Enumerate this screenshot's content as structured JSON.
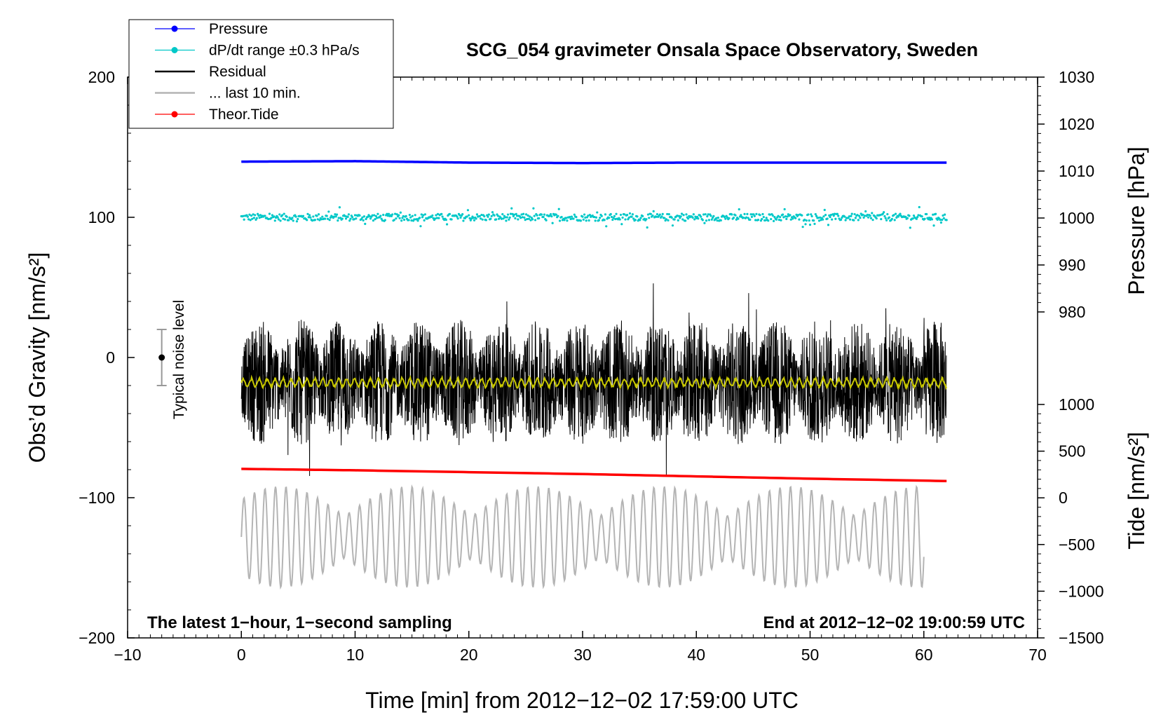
{
  "chart_data": {
    "type": "line",
    "title": "SCG_054 gravimeter Onsala Space Observatory, Sweden",
    "xlabel": "Time [min] from 2012−12−02 17:59:00 UTC",
    "ylabel_left": "Obs’d Gravity [nm/s²]",
    "ylabel_right_pressure": "Pressure [hPa]",
    "ylabel_right_tide": "Tide [nm/s²]",
    "xlim": [
      -10,
      70
    ],
    "ylim_left": [
      -200,
      200
    ],
    "x_ticks": [
      "−10",
      "0",
      "10",
      "20",
      "30",
      "40",
      "50",
      "60",
      "70"
    ],
    "y_ticks_left": [
      "200",
      "100",
      "0",
      "−100",
      "−200"
    ],
    "pressure_ticks": [
      "1030",
      "1020",
      "1010",
      "1000",
      "990",
      "980"
    ],
    "pressure_range": [
      980,
      1030
    ],
    "tide_ticks": [
      "1000",
      "500",
      "0",
      "−500",
      "−1000",
      "−1500"
    ],
    "tide_range": [
      -1500,
      1000
    ],
    "grid": false,
    "legend_position": "top-left",
    "noise_label": "Typical noise level",
    "noise_bar": {
      "x": -7,
      "center": 0,
      "low": -20,
      "high": 20
    },
    "bottom_left_note": "The latest 1−hour, 1−second sampling",
    "bottom_right_note": "End at 2012−12−02 19:00:59 UTC",
    "legend": [
      {
        "label": "Pressure",
        "color": "#0000ff",
        "marker": true
      },
      {
        "label": "dP/dt range ±0.3 hPa/s",
        "color": "#00c8c8",
        "marker": true
      },
      {
        "label": "Residual",
        "color": "#000000",
        "marker": false
      },
      {
        "label": "... last 10 min.",
        "color": "#b4b4b4",
        "marker": false
      },
      {
        "label": "Theor.Tide",
        "color": "#ff0000",
        "marker": true
      }
    ],
    "series": [
      {
        "name": "Pressure",
        "color": "#0000ff",
        "axis": "pressure",
        "x": [
          0,
          10,
          20,
          30,
          40,
          50,
          62
        ],
        "y": [
          1012.0,
          1012.1,
          1011.8,
          1011.7,
          1011.8,
          1011.8,
          1011.8
        ]
      },
      {
        "name": "dP/dt range ±0.3 hPa/s",
        "color": "#00c8c8",
        "axis": "left",
        "x": [
          0,
          62
        ],
        "y": [
          100,
          100
        ],
        "scatter_spread": 2.5
      },
      {
        "name": "Residual",
        "color": "#000000",
        "axis": "left",
        "x": [
          0,
          62
        ],
        "y": [
          -18,
          -18
        ],
        "amplitude": 45
      },
      {
        "name": "Residual (smoothed)",
        "color": "#c8c800",
        "axis": "left",
        "x": [
          0,
          62
        ],
        "y": [
          -18,
          -18
        ],
        "amplitude": 4
      },
      {
        "name": "... last 10 min.",
        "color": "#b4b4b4",
        "axis": "left",
        "x": [
          0,
          60
        ],
        "y": [
          -128,
          -128
        ],
        "amplitude": 30
      },
      {
        "name": "Theor.Tide",
        "color": "#ff0000",
        "axis": "tide",
        "x": [
          0,
          10,
          20,
          30,
          40,
          50,
          62
        ],
        "y": [
          310,
          295,
          275,
          255,
          230,
          205,
          180
        ]
      }
    ]
  }
}
